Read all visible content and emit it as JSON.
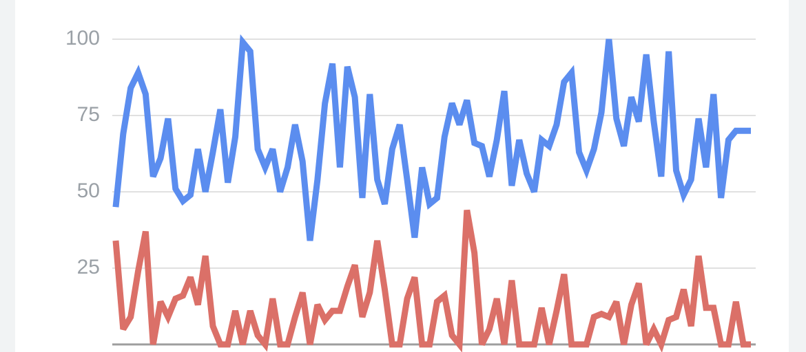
{
  "chart_data": {
    "type": "line",
    "ylim": [
      0,
      100
    ],
    "yticks": [
      25,
      50,
      75,
      100
    ],
    "grid": true,
    "series": [
      {
        "color": "#5b8def",
        "values": [
          45,
          69,
          84,
          89,
          82,
          55,
          61,
          74,
          51,
          47,
          49,
          64,
          50,
          63,
          77,
          53,
          68,
          99,
          96,
          64,
          58,
          64,
          50,
          58,
          72,
          60,
          34,
          54,
          79,
          92,
          58,
          91,
          81,
          48,
          82,
          54,
          46,
          64,
          72,
          54,
          35,
          58,
          46,
          48,
          68,
          79,
          72,
          80,
          66,
          65,
          55,
          67,
          83,
          52,
          67,
          56,
          50,
          67,
          65,
          72,
          86,
          89,
          63,
          57,
          64,
          76,
          100,
          74,
          65,
          81,
          73,
          95,
          73,
          55,
          96,
          57,
          49,
          54,
          74,
          58,
          82,
          48,
          67,
          70,
          70,
          70
        ]
      },
      {
        "color": "#db7068",
        "values": [
          34,
          5,
          9,
          24,
          37,
          0,
          14,
          9,
          15,
          16,
          22,
          13,
          29,
          6,
          0,
          0,
          11,
          0,
          11,
          3,
          0,
          15,
          0,
          0,
          9,
          17,
          0,
          13,
          8,
          11,
          11,
          19,
          26,
          9,
          17,
          34,
          18,
          0,
          0,
          15,
          22,
          0,
          0,
          14,
          16,
          3,
          0,
          44,
          30,
          0,
          5,
          15,
          0,
          21,
          0,
          0,
          0,
          12,
          0,
          11,
          23,
          0,
          0,
          0,
          9,
          10,
          9,
          14,
          0,
          13,
          20,
          0,
          5,
          0,
          8,
          9,
          18,
          6,
          29,
          12,
          12,
          0,
          0,
          14,
          0,
          0
        ]
      }
    ]
  }
}
